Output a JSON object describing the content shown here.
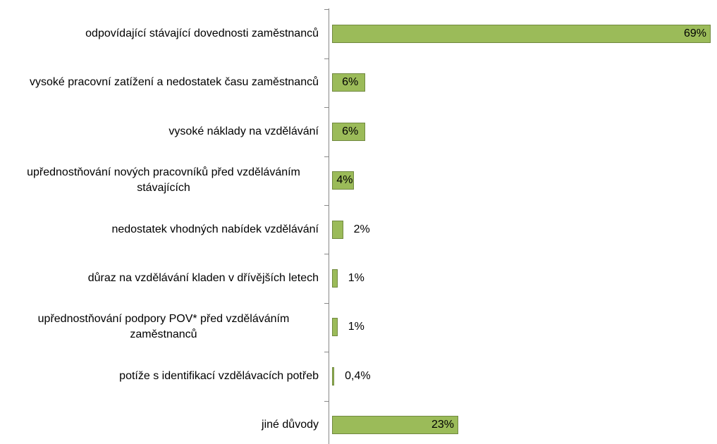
{
  "chart_data": {
    "type": "bar",
    "orientation": "horizontal",
    "categories": [
      "odpovídající stávající dovednosti zaměstnanců",
      "vysoké pracovní zatížení a nedostatek času zaměstnanců",
      "vysoké náklady na vzdělávání",
      "upřednostňování nových pracovníků před vzděláváním stávajících",
      "nedostatek vhodných nabídek vzdělávání",
      "důraz na vzdělávání kladen v dřívějších letech",
      "upřednostňování podpory POV* před vzděláváním zaměstnanců",
      "potíže s identifikací vzdělávacích potřeb",
      "jiné důvody"
    ],
    "values": [
      69,
      6,
      6,
      4,
      2,
      1,
      1,
      0.4,
      23
    ],
    "value_labels": [
      "69%",
      "6%",
      "6%",
      "4%",
      "2%",
      "1%",
      "1%",
      "0,4%",
      "23%"
    ],
    "color": "#9bbb59"
  }
}
